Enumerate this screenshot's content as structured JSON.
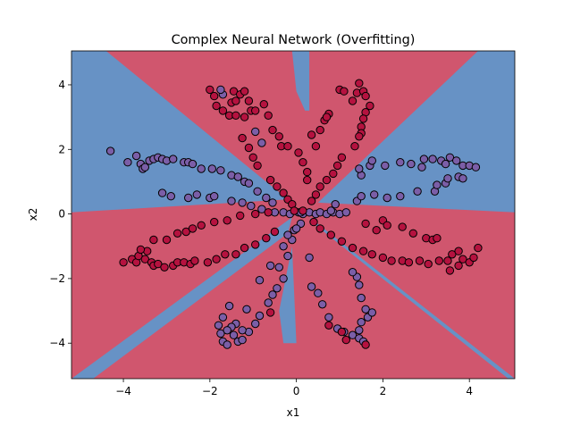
{
  "chart_data": {
    "type": "scatter",
    "title": "Complex Neural Network (Overfitting)",
    "xlabel": "x1",
    "ylabel": "x2",
    "xlim": [
      -5.2,
      5.05
    ],
    "ylim": [
      -5.1,
      5.05
    ],
    "x_ticks": [
      -4,
      -2,
      0,
      2,
      4
    ],
    "y_ticks": [
      -4,
      -2,
      0,
      2,
      4
    ],
    "grid": false,
    "legend": "none",
    "colors": {
      "class_0_point": "#7b5ea7",
      "class_1_point": "#b5123f",
      "class_0_region": "#6792c5",
      "class_1_region": "#d0566e",
      "point_edge": "#000000"
    },
    "decision_regions": {
      "class_0": [
        [
          [
            -5.2,
            5.05
          ],
          [
            -4.4,
            5.05
          ],
          [
            -0.2,
            0.45
          ],
          [
            -5.2,
            0.05
          ]
        ],
        [
          [
            -5.2,
            -5.1
          ],
          [
            -4.7,
            -5.1
          ],
          [
            -0.2,
            -0.6
          ],
          [
            -0.1,
            -0.1
          ]
        ],
        [
          [
            5.05,
            5.05
          ],
          [
            4.2,
            5.05
          ],
          [
            0.5,
            0.35
          ],
          [
            5.05,
            0.05
          ]
        ],
        [
          [
            5.05,
            -5.1
          ],
          [
            4.9,
            -5.1
          ],
          [
            0.4,
            -0.3
          ],
          [
            0.3,
            -0.1
          ]
        ],
        [
          [
            -0.1,
            5.05
          ],
          [
            0.3,
            5.05
          ],
          [
            0.3,
            3.2
          ],
          [
            0.2,
            3.2
          ],
          [
            0.0,
            3.8
          ]
        ],
        [
          [
            -0.1,
            -1.0
          ],
          [
            0.0,
            -4.0
          ],
          [
            -0.3,
            -4.0
          ],
          [
            -0.4,
            -3.0
          ]
        ]
      ]
    },
    "series": [
      {
        "class": 0,
        "points": [
          [
            -4.3,
            1.95
          ],
          [
            -3.9,
            1.6
          ],
          [
            -3.7,
            1.8
          ],
          [
            -3.6,
            1.55
          ],
          [
            -3.55,
            1.4
          ],
          [
            -3.5,
            1.45
          ],
          [
            -3.4,
            1.65
          ],
          [
            -3.3,
            1.7
          ],
          [
            -3.2,
            1.75
          ],
          [
            -3.1,
            1.7
          ],
          [
            -3.0,
            1.65
          ],
          [
            -2.85,
            1.7
          ],
          [
            -2.6,
            1.6
          ],
          [
            -2.5,
            1.6
          ],
          [
            -2.4,
            1.55
          ],
          [
            -2.2,
            1.4
          ],
          [
            -1.95,
            1.4
          ],
          [
            -1.75,
            1.35
          ],
          [
            -1.5,
            1.2
          ],
          [
            -1.35,
            1.15
          ],
          [
            -1.2,
            1.0
          ],
          [
            -1.1,
            0.95
          ],
          [
            -0.9,
            0.7
          ],
          [
            -0.7,
            0.5
          ],
          [
            -0.55,
            0.35
          ],
          [
            -3.1,
            0.65
          ],
          [
            -2.9,
            0.55
          ],
          [
            -2.5,
            0.5
          ],
          [
            -2.3,
            0.6
          ],
          [
            -2.0,
            0.5
          ],
          [
            -1.9,
            0.55
          ],
          [
            -1.5,
            0.4
          ],
          [
            -1.25,
            0.35
          ],
          [
            -1.05,
            0.25
          ],
          [
            -0.8,
            0.15
          ],
          [
            -0.5,
            0.05
          ],
          [
            -0.3,
            0.05
          ],
          [
            -0.15,
            0.0
          ],
          [
            0.05,
            0.05
          ],
          [
            0.15,
            0.0
          ],
          [
            0.3,
            0.05
          ],
          [
            0.45,
            0.0
          ],
          [
            0.55,
            0.05
          ],
          [
            0.7,
            0.0
          ],
          [
            0.85,
            0.05
          ],
          [
            1.0,
            0.0
          ],
          [
            1.15,
            0.05
          ],
          [
            0.8,
            0.1
          ],
          [
            0.9,
            0.3
          ],
          [
            1.4,
            0.4
          ],
          [
            1.5,
            0.55
          ],
          [
            1.8,
            0.6
          ],
          [
            2.1,
            0.5
          ],
          [
            2.4,
            0.55
          ],
          [
            2.8,
            0.7
          ],
          [
            3.2,
            0.7
          ],
          [
            3.25,
            0.9
          ],
          [
            3.45,
            0.95
          ],
          [
            3.5,
            1.1
          ],
          [
            3.75,
            1.15
          ],
          [
            3.85,
            1.1
          ],
          [
            1.5,
            1.2
          ],
          [
            1.45,
            1.4
          ],
          [
            1.7,
            1.5
          ],
          [
            1.75,
            1.65
          ],
          [
            2.05,
            1.5
          ],
          [
            2.4,
            1.6
          ],
          [
            2.65,
            1.55
          ],
          [
            2.9,
            1.45
          ],
          [
            2.95,
            1.7
          ],
          [
            3.15,
            1.7
          ],
          [
            3.35,
            1.65
          ],
          [
            3.45,
            1.55
          ],
          [
            3.55,
            1.75
          ],
          [
            3.7,
            1.65
          ],
          [
            3.85,
            1.5
          ],
          [
            4.0,
            1.5
          ],
          [
            4.15,
            1.45
          ],
          [
            0.1,
            0.05
          ],
          [
            -1.7,
            3.7
          ],
          [
            -1.75,
            3.85
          ],
          [
            -0.95,
            2.55
          ],
          [
            -0.8,
            2.2
          ],
          [
            -1.55,
            -2.85
          ],
          [
            -1.7,
            -3.2
          ],
          [
            -1.8,
            -3.45
          ],
          [
            -1.75,
            -3.7
          ],
          [
            -1.7,
            -3.95
          ],
          [
            -1.6,
            -4.05
          ],
          [
            -1.35,
            -3.95
          ],
          [
            -1.25,
            -3.9
          ],
          [
            -1.1,
            -3.65
          ],
          [
            -0.95,
            -3.4
          ],
          [
            -0.85,
            -3.15
          ],
          [
            -0.65,
            -2.75
          ],
          [
            -0.55,
            -2.5
          ],
          [
            -0.45,
            -2.3
          ],
          [
            -0.3,
            -2.0
          ],
          [
            -0.4,
            -1.65
          ],
          [
            -0.2,
            -1.3
          ],
          [
            -0.1,
            -0.8
          ],
          [
            -0.05,
            -0.5
          ],
          [
            0.1,
            -0.3
          ],
          [
            -1.15,
            -2.95
          ],
          [
            -1.4,
            -3.4
          ],
          [
            -1.5,
            -3.5
          ],
          [
            -1.6,
            -3.6
          ],
          [
            -1.45,
            -3.75
          ],
          [
            -1.25,
            -3.6
          ],
          [
            -0.85,
            -2.05
          ],
          [
            -0.6,
            -1.6
          ],
          [
            -0.3,
            -1.0
          ],
          [
            -0.2,
            -0.65
          ],
          [
            0.0,
            -0.45
          ],
          [
            0.3,
            -1.35
          ],
          [
            0.35,
            -2.25
          ],
          [
            0.5,
            -2.45
          ],
          [
            0.6,
            -2.8
          ],
          [
            0.75,
            -3.2
          ],
          [
            0.95,
            -3.55
          ],
          [
            1.1,
            -3.65
          ],
          [
            1.3,
            -3.75
          ],
          [
            1.45,
            -3.85
          ],
          [
            1.55,
            -3.95
          ],
          [
            1.45,
            -3.6
          ],
          [
            1.5,
            -3.35
          ],
          [
            1.65,
            -3.2
          ],
          [
            1.75,
            -3.05
          ],
          [
            1.6,
            -2.95
          ],
          [
            1.5,
            -2.6
          ],
          [
            1.45,
            -2.2
          ],
          [
            1.4,
            -1.95
          ],
          [
            1.3,
            -1.8
          ]
        ]
      },
      {
        "class": 1,
        "points": [
          [
            -2.0,
            3.85
          ],
          [
            -1.9,
            3.65
          ],
          [
            -1.85,
            3.35
          ],
          [
            -1.7,
            3.2
          ],
          [
            -1.55,
            3.05
          ],
          [
            -1.5,
            3.45
          ],
          [
            -1.45,
            3.8
          ],
          [
            -1.4,
            3.5
          ],
          [
            -1.3,
            3.7
          ],
          [
            -1.2,
            3.8
          ],
          [
            -1.1,
            3.5
          ],
          [
            -1.05,
            3.2
          ],
          [
            -0.95,
            3.2
          ],
          [
            -1.2,
            3.0
          ],
          [
            -1.4,
            3.05
          ],
          [
            -0.75,
            3.4
          ],
          [
            -0.65,
            3.05
          ],
          [
            -0.55,
            2.6
          ],
          [
            -0.4,
            2.4
          ],
          [
            -0.35,
            2.1
          ],
          [
            -1.25,
            2.35
          ],
          [
            -1.1,
            2.05
          ],
          [
            -1.0,
            1.75
          ],
          [
            -0.9,
            1.5
          ],
          [
            -0.6,
            1.05
          ],
          [
            -0.45,
            0.85
          ],
          [
            -0.3,
            0.65
          ],
          [
            -0.2,
            0.45
          ],
          [
            -0.1,
            0.3
          ],
          [
            -0.05,
            0.1
          ],
          [
            0.15,
            0.1
          ],
          [
            0.35,
            0.4
          ],
          [
            0.45,
            0.6
          ],
          [
            0.55,
            0.85
          ],
          [
            0.7,
            1.05
          ],
          [
            0.85,
            1.25
          ],
          [
            0.95,
            1.5
          ],
          [
            1.05,
            1.75
          ],
          [
            0.25,
            1.05
          ],
          [
            0.25,
            1.3
          ],
          [
            0.15,
            1.6
          ],
          [
            0.05,
            1.9
          ],
          [
            -0.2,
            2.1
          ],
          [
            0.45,
            2.1
          ],
          [
            0.35,
            2.45
          ],
          [
            0.55,
            2.6
          ],
          [
            0.65,
            2.9
          ],
          [
            0.75,
            3.1
          ],
          [
            0.7,
            3.0
          ],
          [
            1.0,
            3.85
          ],
          [
            1.1,
            3.8
          ],
          [
            1.3,
            3.5
          ],
          [
            1.4,
            3.75
          ],
          [
            1.45,
            4.05
          ],
          [
            1.55,
            3.8
          ],
          [
            1.6,
            3.65
          ],
          [
            1.7,
            3.35
          ],
          [
            1.6,
            3.15
          ],
          [
            1.55,
            2.95
          ],
          [
            1.5,
            2.7
          ],
          [
            1.5,
            2.5
          ],
          [
            1.45,
            2.4
          ],
          [
            1.35,
            2.1
          ],
          [
            -4.0,
            -1.5
          ],
          [
            -3.8,
            -1.4
          ],
          [
            -3.7,
            -1.5
          ],
          [
            -3.65,
            -1.3
          ],
          [
            -3.5,
            -1.4
          ],
          [
            -3.45,
            -1.15
          ],
          [
            -3.35,
            -1.5
          ],
          [
            -3.3,
            -1.6
          ],
          [
            -3.2,
            -1.55
          ],
          [
            -3.05,
            -1.65
          ],
          [
            -2.85,
            -1.6
          ],
          [
            -2.75,
            -1.5
          ],
          [
            -2.6,
            -1.5
          ],
          [
            -2.45,
            -1.55
          ],
          [
            -2.35,
            -1.45
          ],
          [
            -2.05,
            -1.5
          ],
          [
            -1.85,
            -1.4
          ],
          [
            -1.65,
            -1.25
          ],
          [
            -1.4,
            -1.25
          ],
          [
            -1.2,
            -1.05
          ],
          [
            -0.95,
            -0.95
          ],
          [
            -0.7,
            -0.75
          ],
          [
            -0.5,
            -0.55
          ],
          [
            -3.6,
            -1.1
          ],
          [
            -3.3,
            -0.8
          ],
          [
            -3.0,
            -0.8
          ],
          [
            -2.75,
            -0.6
          ],
          [
            -2.55,
            -0.55
          ],
          [
            -2.4,
            -0.45
          ],
          [
            -2.2,
            -0.35
          ],
          [
            -1.9,
            -0.25
          ],
          [
            -1.6,
            -0.2
          ],
          [
            -1.3,
            -0.05
          ],
          [
            -0.95,
            -0.0
          ],
          [
            -0.65,
            0.05
          ],
          [
            0.4,
            -0.25
          ],
          [
            0.55,
            -0.45
          ],
          [
            0.8,
            -0.65
          ],
          [
            1.05,
            -0.85
          ],
          [
            1.3,
            -1.05
          ],
          [
            1.55,
            -1.15
          ],
          [
            1.75,
            -1.25
          ],
          [
            2.0,
            -1.35
          ],
          [
            2.2,
            -1.45
          ],
          [
            2.45,
            -1.45
          ],
          [
            2.6,
            -1.5
          ],
          [
            2.85,
            -1.45
          ],
          [
            3.05,
            -1.55
          ],
          [
            3.3,
            -1.45
          ],
          [
            3.5,
            -1.45
          ],
          [
            3.6,
            -1.25
          ],
          [
            3.75,
            -1.15
          ],
          [
            3.85,
            -1.4
          ],
          [
            4.0,
            -1.5
          ],
          [
            4.1,
            -1.35
          ],
          [
            4.2,
            -1.05
          ],
          [
            3.75,
            -1.6
          ],
          [
            3.55,
            -1.75
          ],
          [
            1.6,
            -0.3
          ],
          [
            1.85,
            -0.5
          ],
          [
            2.0,
            -0.2
          ],
          [
            2.1,
            -0.35
          ],
          [
            2.45,
            -0.4
          ],
          [
            2.7,
            -0.6
          ],
          [
            3.0,
            -0.75
          ],
          [
            3.15,
            -0.8
          ],
          [
            3.25,
            -0.75
          ],
          [
            0.75,
            -3.45
          ],
          [
            1.05,
            -3.65
          ],
          [
            1.15,
            -3.9
          ],
          [
            1.6,
            -4.05
          ],
          [
            -0.6,
            -3.05
          ]
        ]
      }
    ]
  }
}
